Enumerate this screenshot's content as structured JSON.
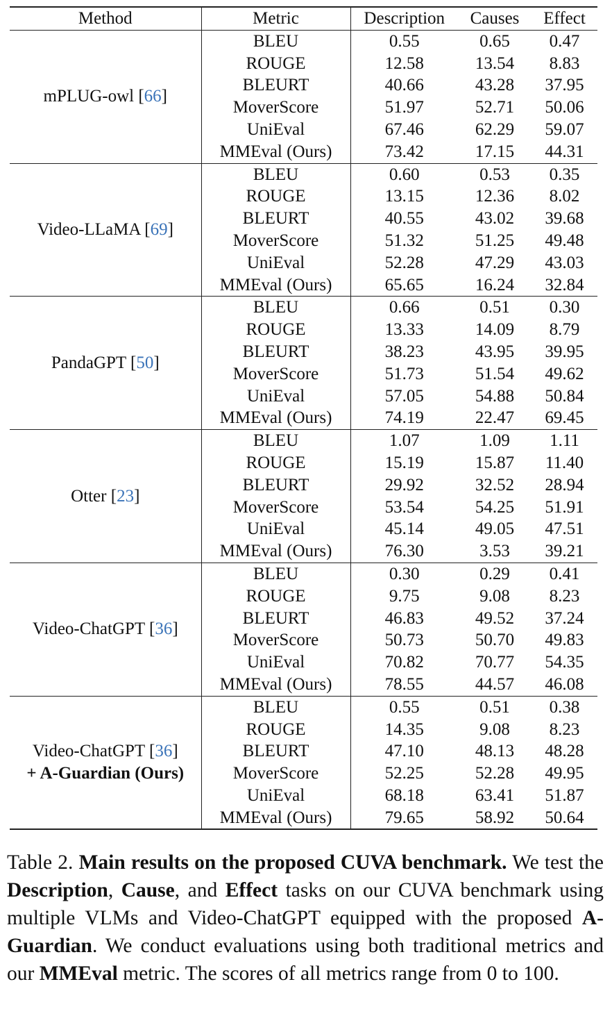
{
  "table": {
    "headers": [
      "Method",
      "Metric",
      "Description",
      "Causes",
      "Effect"
    ],
    "groups": [
      {
        "method": [
          "mPLUG-owl [66]"
        ],
        "rows": [
          {
            "metric": "BLEU",
            "values": [
              "0.55",
              "0.65",
              "0.47"
            ],
            "bold": [
              false,
              false,
              false
            ]
          },
          {
            "metric": "ROUGE",
            "values": [
              "12.58",
              "13.54",
              "8.83"
            ],
            "bold": [
              false,
              false,
              false
            ]
          },
          {
            "metric": "BLEURT",
            "values": [
              "40.66",
              "43.28",
              "37.95"
            ],
            "bold": [
              false,
              false,
              false
            ]
          },
          {
            "metric": "MoverScore",
            "values": [
              "51.97",
              "52.71",
              "50.06"
            ],
            "bold": [
              false,
              true,
              false
            ]
          },
          {
            "metric": "UniEval",
            "values": [
              "67.46",
              "62.29",
              "59.07"
            ],
            "bold": [
              false,
              false,
              true
            ]
          },
          {
            "metric": "MMEval (Ours)",
            "values": [
              "73.42",
              "17.15",
              "44.31"
            ],
            "bold": [
              false,
              false,
              false
            ],
            "metric_bold": true
          }
        ]
      },
      {
        "method": [
          "Video-LLaMA [69]"
        ],
        "rows": [
          {
            "metric": "BLEU",
            "values": [
              "0.60",
              "0.53",
              "0.35"
            ],
            "bold": [
              false,
              false,
              false
            ]
          },
          {
            "metric": "ROUGE",
            "values": [
              "13.15",
              "12.36",
              "8.02"
            ],
            "bold": [
              false,
              false,
              false
            ]
          },
          {
            "metric": "BLEURT",
            "values": [
              "40.55",
              "43.02",
              "39.68"
            ],
            "bold": [
              false,
              false,
              false
            ]
          },
          {
            "metric": "MoverScore",
            "values": [
              "51.32",
              "51.25",
              "49.48"
            ],
            "bold": [
              false,
              false,
              false
            ]
          },
          {
            "metric": "UniEval",
            "values": [
              "52.28",
              "47.29",
              "43.03"
            ],
            "bold": [
              false,
              false,
              false
            ]
          },
          {
            "metric": "MMEval (Ours)",
            "values": [
              "65.65",
              "16.24",
              "32.84"
            ],
            "bold": [
              false,
              false,
              false
            ],
            "metric_bold": true
          }
        ]
      },
      {
        "method": [
          "PandaGPT [50]"
        ],
        "rows": [
          {
            "metric": "BLEU",
            "values": [
              "0.66",
              "0.51",
              "0.30"
            ],
            "bold": [
              false,
              false,
              false
            ]
          },
          {
            "metric": "ROUGE",
            "values": [
              "13.33",
              "14.09",
              "8.79"
            ],
            "bold": [
              false,
              false,
              false
            ]
          },
          {
            "metric": "BLEURT",
            "values": [
              "38.23",
              "43.95",
              "39.95"
            ],
            "bold": [
              false,
              false,
              false
            ]
          },
          {
            "metric": "MoverScore",
            "values": [
              "51.73",
              "51.54",
              "49.62"
            ],
            "bold": [
              false,
              false,
              false
            ]
          },
          {
            "metric": "UniEval",
            "values": [
              "57.05",
              "54.88",
              "50.84"
            ],
            "bold": [
              false,
              false,
              false
            ]
          },
          {
            "metric": "MMEval (Ours)",
            "values": [
              "74.19",
              "22.47",
              "69.45"
            ],
            "bold": [
              false,
              false,
              true
            ],
            "metric_bold": true
          }
        ]
      },
      {
        "method": [
          "Otter [23]"
        ],
        "rows": [
          {
            "metric": "BLEU",
            "values": [
              "1.07",
              "1.09",
              "1.11"
            ],
            "bold": [
              true,
              true,
              true
            ]
          },
          {
            "metric": "ROUGE",
            "values": [
              "15.19",
              "15.87",
              "11.40"
            ],
            "bold": [
              true,
              true,
              true
            ]
          },
          {
            "metric": "BLEURT",
            "values": [
              "29.92",
              "32.52",
              "28.94"
            ],
            "bold": [
              false,
              false,
              false
            ]
          },
          {
            "metric": "MoverScore",
            "values": [
              "53.54",
              "54.25",
              "51.91"
            ],
            "bold": [
              true,
              false,
              true
            ]
          },
          {
            "metric": "UniEval",
            "values": [
              "45.14",
              "49.05",
              "47.51"
            ],
            "bold": [
              false,
              false,
              false
            ]
          },
          {
            "metric": "MMEval (Ours)",
            "values": [
              "76.30",
              "3.53",
              "39.21"
            ],
            "bold": [
              false,
              false,
              false
            ],
            "metric_bold": true
          }
        ]
      },
      {
        "method": [
          "Video-ChatGPT [36]"
        ],
        "rows": [
          {
            "metric": "BLEU",
            "values": [
              "0.30",
              "0.29",
              "0.41"
            ],
            "bold": [
              false,
              false,
              false
            ]
          },
          {
            "metric": "ROUGE",
            "values": [
              "9.75",
              "9.08",
              "8.23"
            ],
            "bold": [
              false,
              false,
              false
            ]
          },
          {
            "metric": "BLEURT",
            "values": [
              "46.83",
              "49.52",
              "37.24"
            ],
            "bold": [
              false,
              true,
              false
            ]
          },
          {
            "metric": "MoverScore",
            "values": [
              "50.73",
              "50.70",
              "49.83"
            ],
            "bold": [
              false,
              false,
              false
            ]
          },
          {
            "metric": "UniEval",
            "values": [
              "70.82",
              "70.77",
              "54.35"
            ],
            "bold": [
              true,
              true,
              false
            ]
          },
          {
            "metric": "MMEval (Ours)",
            "values": [
              "78.55",
              "44.57",
              "46.08"
            ],
            "bold": [
              false,
              false,
              false
            ],
            "metric_bold": true
          }
        ]
      },
      {
        "method": [
          "Video-ChatGPT [36]",
          "+ A-Guardian (Ours)"
        ],
        "rows": [
          {
            "metric": "BLEU",
            "values": [
              "0.55",
              "0.51",
              "0.38"
            ],
            "bold": [
              false,
              false,
              false
            ]
          },
          {
            "metric": "ROUGE",
            "values": [
              "14.35",
              "9.08",
              "8.23"
            ],
            "bold": [
              false,
              false,
              false
            ]
          },
          {
            "metric": "BLEURT",
            "values": [
              "47.10",
              "48.13",
              "48.28"
            ],
            "bold": [
              true,
              false,
              true
            ]
          },
          {
            "metric": "MoverScore",
            "values": [
              "52.25",
              "52.28",
              "49.95"
            ],
            "bold": [
              false,
              false,
              false
            ]
          },
          {
            "metric": "UniEval",
            "values": [
              "68.18",
              "63.41",
              "51.87"
            ],
            "bold": [
              false,
              false,
              false
            ]
          },
          {
            "metric": "MMEval (Ours)",
            "values": [
              "79.65",
              "58.92",
              "50.64"
            ],
            "bold": [
              true,
              true,
              false
            ],
            "metric_bold": true
          }
        ]
      }
    ]
  },
  "caption": {
    "label": "Table 2.",
    "title": "Main results on the proposed CUVA benchmark.",
    "t1": " We test the ",
    "b1": "Description",
    "t2": ", ",
    "b2": "Cause",
    "t3": ", and ",
    "b3": "Effect",
    "t4": " tasks on our CUVA benchmark using multiple VLMs and Video-ChatGPT equipped with the proposed ",
    "b4": "A-Guardian",
    "t5": ". We conduct evaluations using both traditional metrics and our ",
    "b5": "MMEval",
    "t6": " metric. The scores of all metrics range from 0 to 100."
  },
  "colors": {
    "citation": "#3a73b8",
    "rule": "#222222"
  }
}
